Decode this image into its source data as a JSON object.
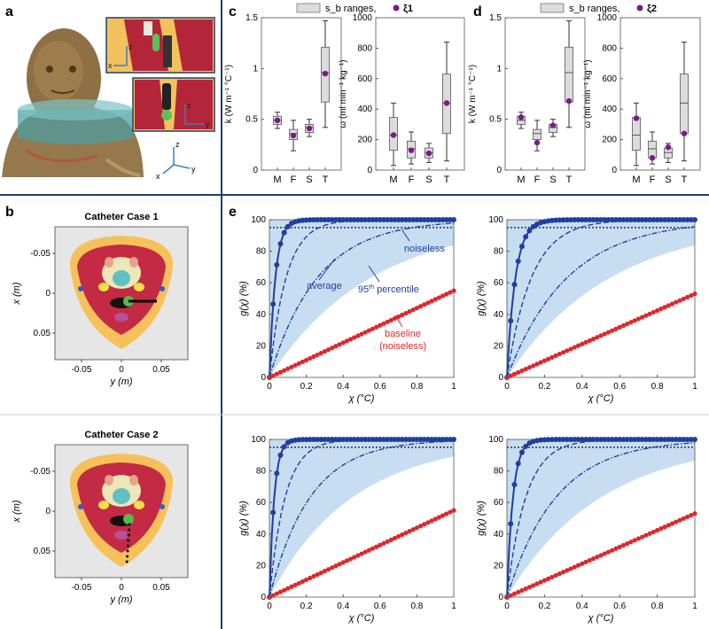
{
  "panel_labels": {
    "a": "a",
    "b": "b",
    "c": "c",
    "d": "d",
    "e": "e"
  },
  "panel_a": {
    "axes_labels": {
      "z": "z",
      "x": "x",
      "y": "y"
    }
  },
  "panel_b": {
    "case1_title": "Catheter Case 1",
    "case2_title": "Catheter Case 2",
    "xlabel": "y (m)",
    "ylabel": "x (m)",
    "xticks": [
      "-0.05",
      "0",
      "0.05"
    ],
    "yticks": [
      "-0.05",
      "0",
      "0.05"
    ]
  },
  "colors": {
    "blue": "#1f3f9e",
    "red": "#e0262a",
    "band": "#c7ddf2",
    "box": "#dcdcdc",
    "purple": "#7b1a86"
  },
  "chart_data": [
    {
      "id": "c_k",
      "type": "box",
      "panel": "c",
      "legend": {
        "box_label": "s_b ranges,",
        "point_label": "ξ1"
      },
      "ylabel": "k (W m⁻¹ °C⁻¹)",
      "ylim": [
        0,
        1.5
      ],
      "yticks": [
        "0",
        "0.5",
        "1",
        "1.5"
      ],
      "categories": [
        "M",
        "F",
        "S",
        "T"
      ],
      "boxes": [
        {
          "min": 0.41,
          "q1": 0.45,
          "median": 0.49,
          "q3": 0.53,
          "max": 0.57
        },
        {
          "min": 0.19,
          "q1": 0.3,
          "median": 0.36,
          "q3": 0.4,
          "max": 0.49
        },
        {
          "min": 0.33,
          "q1": 0.37,
          "median": 0.42,
          "q3": 0.45,
          "max": 0.5
        },
        {
          "min": 0.42,
          "q1": 0.67,
          "median": 0.96,
          "q3": 1.21,
          "max": 1.47
        }
      ],
      "points": [
        0.49,
        0.34,
        0.41,
        0.95
      ]
    },
    {
      "id": "c_w",
      "type": "box",
      "panel": "c",
      "ylabel": "ω (ml min⁻¹ kg⁻¹)",
      "ylim": [
        0,
        1000
      ],
      "yticks": [
        "0",
        "200",
        "400",
        "600",
        "800",
        "1000"
      ],
      "categories": [
        "M",
        "F",
        "S",
        "T"
      ],
      "boxes": [
        {
          "min": 30,
          "q1": 130,
          "median": 230,
          "q3": 345,
          "max": 440
        },
        {
          "min": 40,
          "q1": 80,
          "median": 140,
          "q3": 190,
          "max": 250
        },
        {
          "min": 50,
          "q1": 80,
          "median": 115,
          "q3": 145,
          "max": 175
        },
        {
          "min": 60,
          "q1": 240,
          "median": 440,
          "q3": 630,
          "max": 840
        }
      ],
      "points": [
        230,
        130,
        110,
        440
      ]
    },
    {
      "id": "d_k",
      "type": "box",
      "panel": "d",
      "legend": {
        "box_label": "s_b ranges,",
        "point_label": "ξ2"
      },
      "ylabel": "k (W m⁻¹ °C⁻¹)",
      "ylim": [
        0,
        1.5
      ],
      "yticks": [
        "0",
        "0.5",
        "1",
        "1.5"
      ],
      "categories": [
        "M",
        "F",
        "S",
        "T"
      ],
      "boxes": [
        {
          "min": 0.41,
          "q1": 0.45,
          "median": 0.49,
          "q3": 0.53,
          "max": 0.57
        },
        {
          "min": 0.19,
          "q1": 0.3,
          "median": 0.36,
          "q3": 0.4,
          "max": 0.49
        },
        {
          "min": 0.33,
          "q1": 0.37,
          "median": 0.42,
          "q3": 0.45,
          "max": 0.5
        },
        {
          "min": 0.42,
          "q1": 0.67,
          "median": 0.96,
          "q3": 1.21,
          "max": 1.47
        }
      ],
      "points": [
        0.52,
        0.27,
        0.44,
        0.68
      ]
    },
    {
      "id": "d_w",
      "type": "box",
      "panel": "d",
      "ylabel": "ω (ml min⁻¹ kg⁻¹)",
      "ylim": [
        0,
        1000
      ],
      "yticks": [
        "0",
        "200",
        "400",
        "600",
        "800",
        "1000"
      ],
      "categories": [
        "M",
        "F",
        "S",
        "T"
      ],
      "boxes": [
        {
          "min": 30,
          "q1": 130,
          "median": 230,
          "q3": 345,
          "max": 440
        },
        {
          "min": 40,
          "q1": 80,
          "median": 140,
          "q3": 190,
          "max": 250
        },
        {
          "min": 50,
          "q1": 80,
          "median": 115,
          "q3": 145,
          "max": 175
        },
        {
          "min": 60,
          "q1": 240,
          "median": 440,
          "q3": 630,
          "max": 840
        }
      ],
      "points": [
        340,
        80,
        150,
        240
      ]
    },
    {
      "id": "e1",
      "type": "line",
      "panel": "e",
      "xlabel": "χ (°C)",
      "ylabel": "g(χ) (%)",
      "xlim": [
        0,
        1
      ],
      "ylim": [
        0,
        100
      ],
      "xticks": [
        "0",
        "0.2",
        "0.4",
        "0.6",
        "0.8",
        "1"
      ],
      "yticks": [
        "0",
        "20",
        "40",
        "60",
        "80",
        "100"
      ],
      "ref_line": 95,
      "noiseless_tau": 0.032,
      "average_tau": 0.09,
      "p95_tau": 0.26,
      "band_tau_low": 0.55,
      "baseline_end": 55,
      "annotations": {
        "noiseless": "noiseless",
        "average": "average",
        "p95": "95 percentile",
        "p95_sup": "th",
        "baseline": "baseline",
        "baseline2": "(noiseless)"
      }
    },
    {
      "id": "e2",
      "type": "line",
      "panel": "e",
      "xlabel": "χ (°C)",
      "ylabel": "g(χ) (%)",
      "xlim": [
        0,
        1
      ],
      "ylim": [
        0,
        100
      ],
      "xticks": [
        "0",
        "0.2",
        "0.4",
        "0.6",
        "0.8",
        "1"
      ],
      "yticks": [
        "0",
        "20",
        "40",
        "60",
        "80",
        "100"
      ],
      "ref_line": 95,
      "noiseless_tau": 0.045,
      "average_tau": 0.13,
      "p95_tau": 0.32,
      "band_tau_low": 0.55,
      "baseline_end": 53
    },
    {
      "id": "e3",
      "type": "line",
      "panel": "e",
      "xlabel": "χ (°C)",
      "ylabel": "g(χ) (%)",
      "xlim": [
        0,
        1
      ],
      "ylim": [
        0,
        100
      ],
      "xticks": [
        "0",
        "0.2",
        "0.4",
        "0.6",
        "0.8",
        "1"
      ],
      "yticks": [
        "0",
        "20",
        "40",
        "60",
        "80",
        "100"
      ],
      "ref_line": 95,
      "noiseless_tau": 0.026,
      "average_tau": 0.085,
      "p95_tau": 0.22,
      "band_tau_low": 0.45,
      "baseline_end": 55
    },
    {
      "id": "e4",
      "type": "line",
      "panel": "e",
      "xlabel": "χ (°C)",
      "ylabel": "g(χ) (%)",
      "xlim": [
        0,
        1
      ],
      "ylim": [
        0,
        100
      ],
      "xticks": [
        "0",
        "0.2",
        "0.4",
        "0.6",
        "0.8",
        "1"
      ],
      "yticks": [
        "0",
        "20",
        "40",
        "60",
        "80",
        "100"
      ],
      "ref_line": 95,
      "noiseless_tau": 0.032,
      "average_tau": 0.1,
      "p95_tau": 0.26,
      "band_tau_low": 0.5,
      "baseline_end": 53
    }
  ]
}
